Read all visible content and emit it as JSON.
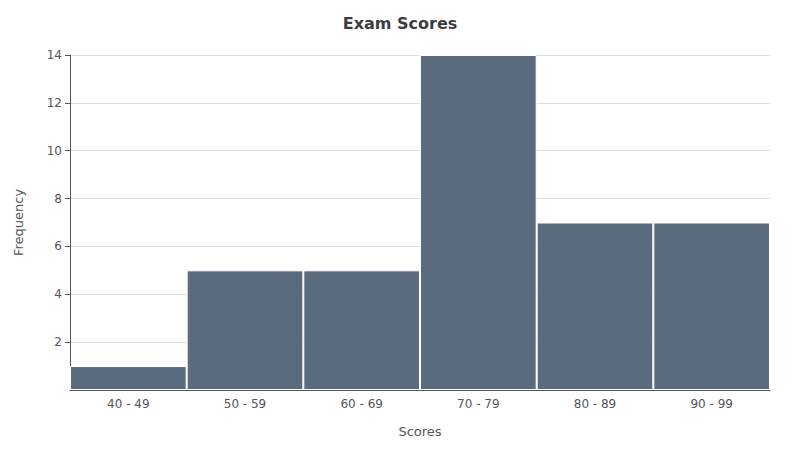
{
  "chart_data": {
    "type": "bar",
    "title": "Exam Scores",
    "xlabel": "Scores",
    "ylabel": "Frequency",
    "categories": [
      "40 - 49",
      "50 - 59",
      "60 - 69",
      "70 - 79",
      "80 - 89",
      "90 - 99"
    ],
    "values": [
      1,
      5,
      5,
      14,
      7,
      7
    ],
    "color": "#5a6b7d",
    "ylim": [
      0,
      14
    ],
    "yticks": [
      2,
      4,
      6,
      8,
      10,
      12,
      14
    ],
    "grid": true
  }
}
